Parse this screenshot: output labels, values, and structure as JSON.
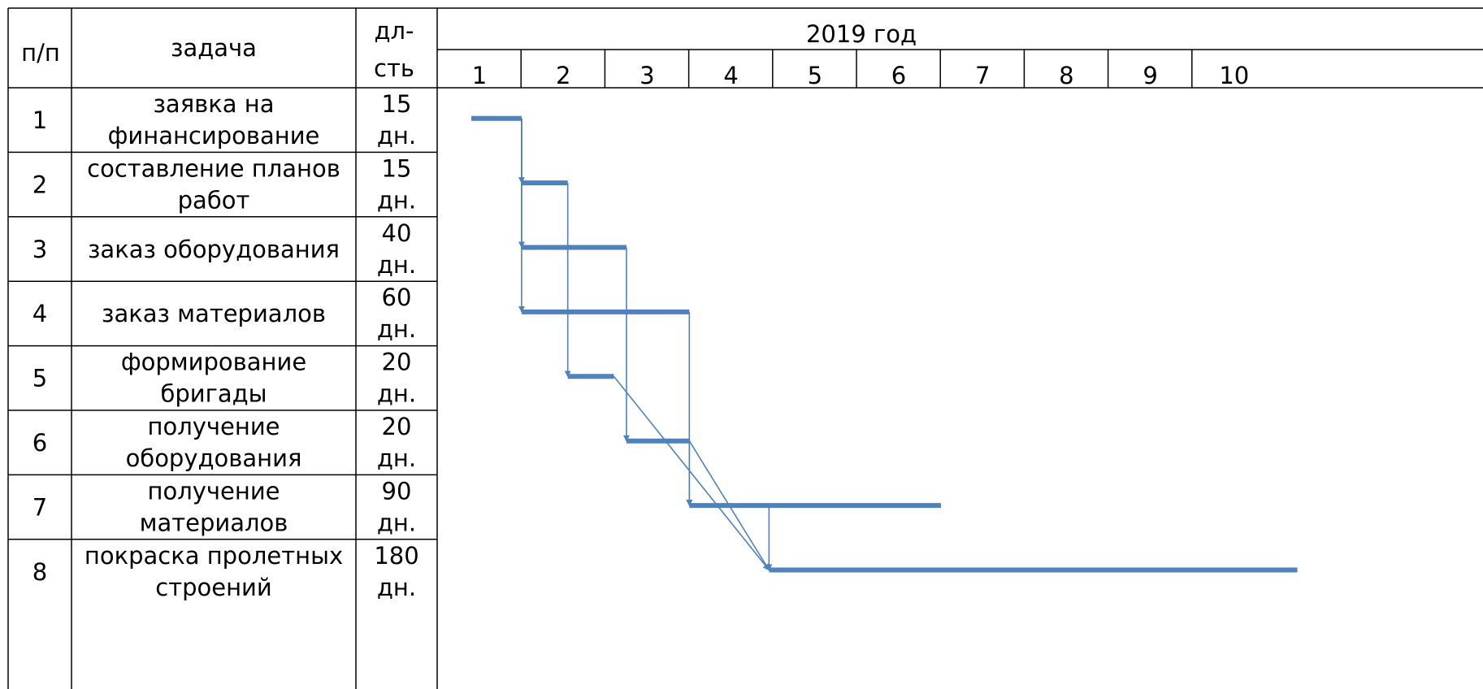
{
  "headers": {
    "num": "п/п",
    "task": "задача",
    "dur_line1": "дл-",
    "dur_line2": "сть",
    "year": "2019 год"
  },
  "months": [
    "1",
    "2",
    "3",
    "4",
    "5",
    "6",
    "7",
    "8",
    "9",
    "10"
  ],
  "rows": [
    {
      "num": "1",
      "task": [
        "заявка на",
        "финансирование"
      ],
      "dur": [
        "15",
        "дн."
      ]
    },
    {
      "num": "2",
      "task": [
        "составление планов",
        "работ"
      ],
      "dur": [
        "15",
        "дн."
      ]
    },
    {
      "num": "3",
      "task": [
        "заказ оборудования"
      ],
      "dur": [
        "40",
        "дн."
      ]
    },
    {
      "num": "4",
      "task": [
        "заказ материалов"
      ],
      "dur": [
        "60",
        "дн."
      ]
    },
    {
      "num": "5",
      "task": [
        "формирование",
        "бригады"
      ],
      "dur": [
        "20",
        "дн."
      ]
    },
    {
      "num": "6",
      "task": [
        "получение",
        "оборудования"
      ],
      "dur": [
        "20",
        "дн."
      ]
    },
    {
      "num": "7",
      "task": [
        "получение",
        "материалов"
      ],
      "dur": [
        "90",
        "дн."
      ]
    },
    {
      "num": "8",
      "task": [
        "покраска пролетных",
        "строений"
      ],
      "dur": [
        "180",
        "дн."
      ]
    }
  ],
  "chart_data": {
    "type": "gantt",
    "x_axis": "months of 2019 (1–10)",
    "xlim": [
      1,
      10
    ],
    "tasks": [
      {
        "id": 1,
        "start": 1.0,
        "end": 1.6
      },
      {
        "id": 2,
        "start": 1.6,
        "end": 2.15
      },
      {
        "id": 3,
        "start": 1.6,
        "end": 2.85
      },
      {
        "id": 4,
        "start": 1.6,
        "end": 3.6
      },
      {
        "id": 5,
        "start": 2.15,
        "end": 2.7
      },
      {
        "id": 6,
        "start": 2.85,
        "end": 3.6
      },
      {
        "id": 7,
        "start": 3.6,
        "end": 6.6
      },
      {
        "id": 8,
        "start": 4.55,
        "end": 10.85
      }
    ],
    "links": [
      {
        "from": 1,
        "to": 2
      },
      {
        "from": 1,
        "to": 3
      },
      {
        "from": 1,
        "to": 4
      },
      {
        "from": 2,
        "to": 5
      },
      {
        "from": 3,
        "to": 6
      },
      {
        "from": 4,
        "to": 7
      },
      {
        "from": 6,
        "to": 7
      },
      {
        "from": 5,
        "to": 8
      },
      {
        "from": 6,
        "to": 8
      },
      {
        "from": 7,
        "to": 8
      }
    ],
    "bar_color": "#4F81BD"
  }
}
